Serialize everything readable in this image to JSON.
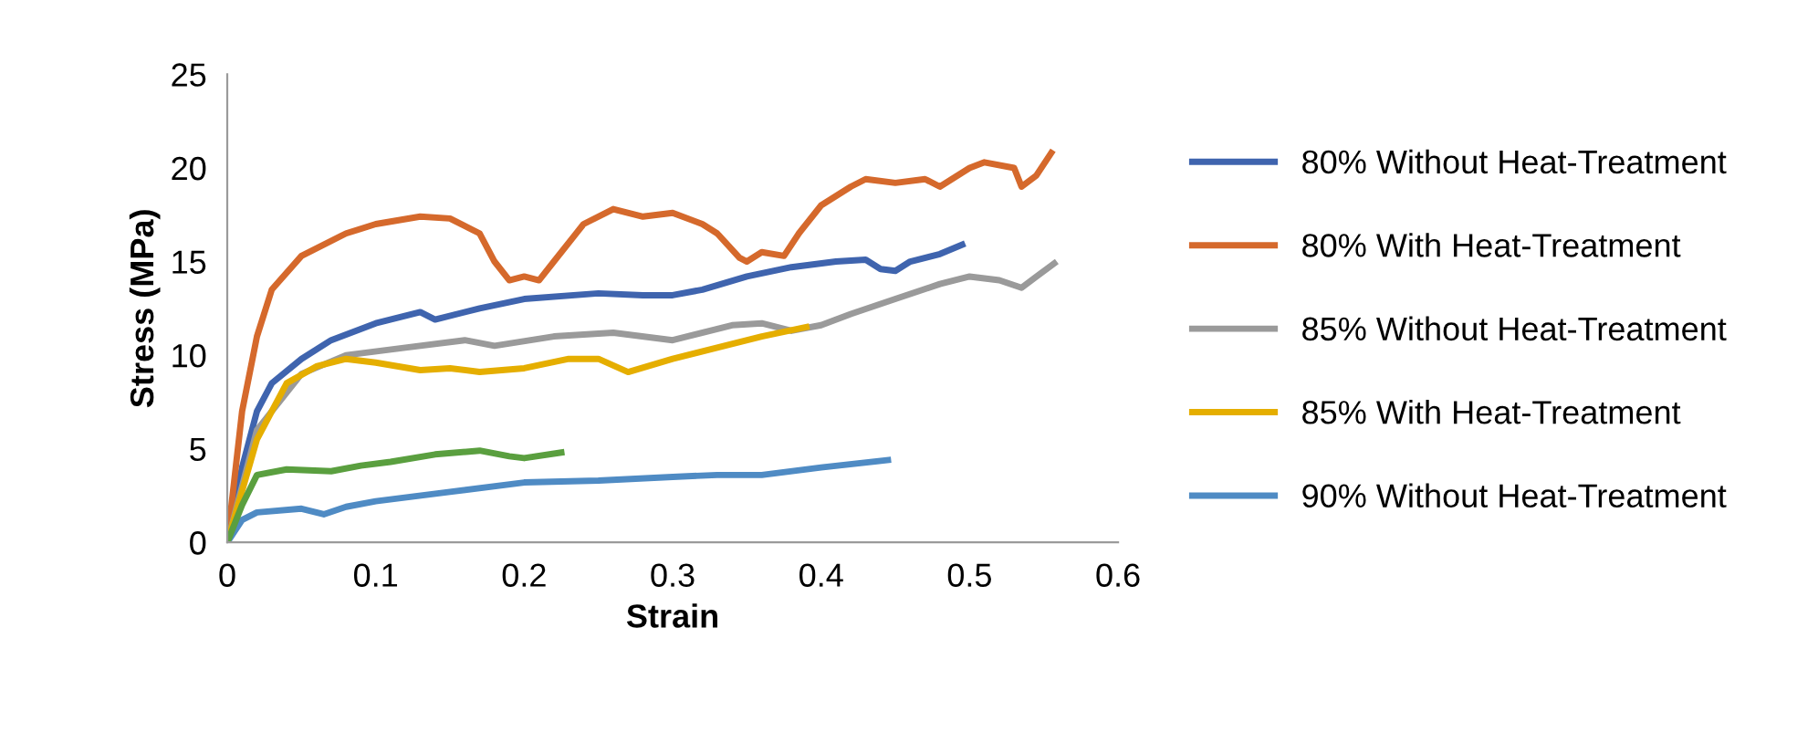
{
  "chart_data": {
    "type": "line",
    "xlabel": "Strain",
    "ylabel": "Stress (MPa)",
    "xlim": [
      0,
      0.6
    ],
    "xticks": [
      0,
      0.1,
      0.2,
      0.3,
      0.4,
      0.5,
      0.6
    ],
    "ylim": [
      0,
      25
    ],
    "yticks": [
      0,
      5,
      10,
      15,
      20,
      25
    ],
    "grid": false,
    "legend": "right",
    "marker": "none",
    "line_style": "solid",
    "series": [
      {
        "name": "80% Without Heat-Treatment",
        "color": "#3f64ae",
        "x": [
          0,
          0.01,
          0.02,
          0.03,
          0.05,
          0.07,
          0.1,
          0.13,
          0.14,
          0.17,
          0.2,
          0.25,
          0.28,
          0.3,
          0.32,
          0.35,
          0.38,
          0.41,
          0.43,
          0.44,
          0.45,
          0.46,
          0.48,
          0.495
        ],
        "values": [
          0,
          4,
          7,
          8.5,
          9.8,
          10.8,
          11.7,
          12.3,
          11.9,
          12.5,
          13,
          13.3,
          13.2,
          13.2,
          13.5,
          14.2,
          14.7,
          15,
          15.1,
          14.6,
          14.5,
          15,
          15.4,
          15.9
        ]
      },
      {
        "name": "80% With Heat-Treatment",
        "color": "#d5692c",
        "x": [
          0,
          0.01,
          0.02,
          0.03,
          0.05,
          0.08,
          0.1,
          0.13,
          0.15,
          0.17,
          0.18,
          0.19,
          0.2,
          0.21,
          0.22,
          0.24,
          0.26,
          0.28,
          0.3,
          0.32,
          0.33,
          0.345,
          0.35,
          0.36,
          0.375,
          0.385,
          0.4,
          0.42,
          0.43,
          0.45,
          0.47,
          0.48,
          0.5,
          0.51,
          0.53,
          0.535,
          0.545,
          0.555
        ],
        "values": [
          0,
          7,
          11,
          13.5,
          15.3,
          16.5,
          17,
          17.4,
          17.3,
          16.5,
          15,
          14,
          14.2,
          14,
          15,
          17,
          17.8,
          17.4,
          17.6,
          17,
          16.5,
          15.2,
          15,
          15.5,
          15.3,
          16.5,
          18,
          19,
          19.4,
          19.2,
          19.4,
          19,
          20,
          20.3,
          20,
          19,
          19.6,
          20.8
        ]
      },
      {
        "name": "85% Without Heat-Treatment",
        "color": "#9a9a9a",
        "x": [
          0,
          0.02,
          0.05,
          0.08,
          0.12,
          0.16,
          0.18,
          0.22,
          0.26,
          0.3,
          0.34,
          0.36,
          0.38,
          0.4,
          0.42,
          0.45,
          0.48,
          0.5,
          0.52,
          0.535,
          0.545,
          0.557
        ],
        "values": [
          0,
          6,
          9,
          10,
          10.4,
          10.8,
          10.5,
          11,
          11.2,
          10.8,
          11.6,
          11.7,
          11.3,
          11.6,
          12.2,
          13,
          13.8,
          14.2,
          14,
          13.6,
          14.2,
          14.9
        ]
      },
      {
        "name": "85% With Heat-Treatment",
        "color": "#e5ae00",
        "x": [
          0,
          0.02,
          0.04,
          0.06,
          0.08,
          0.1,
          0.13,
          0.15,
          0.17,
          0.2,
          0.23,
          0.25,
          0.27,
          0.3,
          0.33,
          0.36,
          0.39
        ],
        "values": [
          0,
          5.5,
          8.5,
          9.4,
          9.8,
          9.6,
          9.2,
          9.3,
          9.1,
          9.3,
          9.8,
          9.8,
          9.1,
          9.8,
          10.4,
          11,
          11.5
        ]
      },
      {
        "name": "90% Without Heat-Treatment",
        "color": "#4f8bc4",
        "x": [
          0,
          0.01,
          0.02,
          0.05,
          0.065,
          0.08,
          0.1,
          0.15,
          0.2,
          0.25,
          0.3,
          0.33,
          0.36,
          0.4,
          0.445
        ],
        "values": [
          0,
          1.2,
          1.6,
          1.8,
          1.5,
          1.9,
          2.2,
          2.7,
          3.2,
          3.3,
          3.5,
          3.6,
          3.6,
          4.0,
          4.4
        ]
      },
      {
        "color": "#5a9f3f",
        "x": [
          0,
          0.01,
          0.02,
          0.04,
          0.07,
          0.09,
          0.11,
          0.14,
          0.17,
          0.19,
          0.2,
          0.225
        ],
        "values": [
          0,
          2,
          3.6,
          3.9,
          3.8,
          4.1,
          4.3,
          4.7,
          4.9,
          4.6,
          4.5,
          4.8
        ]
      }
    ]
  }
}
